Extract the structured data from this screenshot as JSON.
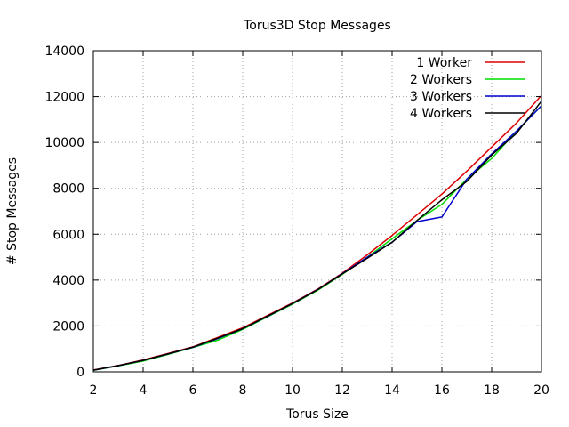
{
  "chart_data": {
    "type": "line",
    "title": "Torus3D Stop Messages",
    "xlabel": "Torus Size",
    "ylabel": "# Stop Messages",
    "xlim": [
      2,
      20
    ],
    "ylim": [
      0,
      14000
    ],
    "xticks": [
      "2",
      "4",
      "6",
      "8",
      "10",
      "12",
      "14",
      "16",
      "18",
      "20"
    ],
    "yticks": [
      "0",
      "2000",
      "4000",
      "6000",
      "8000",
      "10000",
      "12000",
      "14000"
    ],
    "grid": true,
    "legend_position": "top-right",
    "x": [
      2,
      3,
      4,
      5,
      6,
      7,
      8,
      9,
      10,
      11,
      12,
      13,
      14,
      15,
      16,
      17,
      18,
      19,
      20
    ],
    "series": [
      {
        "name": "1 Worker",
        "color": "#dd0000",
        "values": [
          80,
          280,
          520,
          800,
          1090,
          1500,
          1920,
          2460,
          3000,
          3600,
          4300,
          5100,
          5950,
          6850,
          7750,
          8750,
          9800,
          10850,
          12050
        ]
      },
      {
        "name": "2 Workers",
        "color": "#00dd00",
        "values": [
          70,
          260,
          470,
          760,
          1060,
          1380,
          1850,
          2400,
          2950,
          3550,
          4250,
          5000,
          5800,
          6600,
          7300,
          8400,
          9300,
          10500,
          11600
        ]
      },
      {
        "name": "3 Workers",
        "color": "#0000cc",
        "values": [
          70,
          270,
          500,
          780,
          1070,
          1450,
          1880,
          2420,
          2980,
          3580,
          4280,
          5000,
          5650,
          6550,
          6750,
          8400,
          9500,
          10500,
          11600
        ]
      },
      {
        "name": "4 Workers",
        "color": "#000000",
        "values": [
          75,
          270,
          500,
          780,
          1080,
          1470,
          1880,
          2430,
          2980,
          3570,
          4270,
          4950,
          5650,
          6600,
          7500,
          8300,
          9450,
          10400,
          11800
        ]
      }
    ]
  }
}
